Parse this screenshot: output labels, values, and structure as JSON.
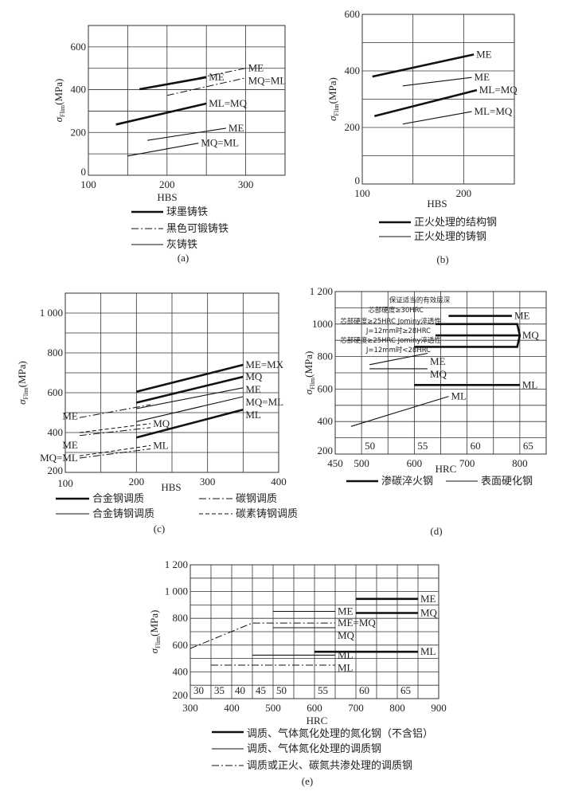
{
  "chart_data": [
    {
      "id": "a",
      "type": "line",
      "caption": "(a)",
      "xlabel": "HBS",
      "ylabel": {
        "symbol": "σ",
        "sub": "Flim",
        "unit": "(MPa)"
      },
      "xlim": [
        100,
        350
      ],
      "ylim": [
        0,
        700
      ],
      "grid": true,
      "grid_step": [
        50,
        100
      ],
      "xticks": [
        {
          "v": 100,
          "t": "100"
        },
        {
          "v": 200,
          "t": "200"
        },
        {
          "v": 300,
          "t": "300"
        }
      ],
      "yticks": [
        {
          "v": 0,
          "t": "0"
        },
        {
          "v": 200,
          "t": "200"
        },
        {
          "v": 400,
          "t": "400"
        },
        {
          "v": 600,
          "t": "600"
        }
      ],
      "series": [
        {
          "name": "球墨铸铁",
          "style": "thick",
          "lines": [
            {
              "label": "ME",
              "points": [
                [
                  165,
                  402
                ],
                [
                  250,
                  458
                ]
              ]
            },
            {
              "label": "ML=MQ",
              "points": [
                [
                  135,
                  237
                ],
                [
                  250,
                  335
                ]
              ]
            }
          ]
        },
        {
          "name": "黑色可锻铸铁",
          "style": "dashdot",
          "lines": [
            {
              "label": "ME",
              "points": [
                [
                  240,
                  455
                ],
                [
                  300,
                  500
                ]
              ]
            },
            {
              "label": "MQ=ML",
              "points": [
                [
                  200,
                  373
                ],
                [
                  300,
                  455
                ]
              ]
            }
          ]
        },
        {
          "name": "灰铸铁",
          "style": "thin",
          "lines": [
            {
              "label": "ME",
              "points": [
                [
                  175,
                  163
                ],
                [
                  275,
                  220
                ]
              ]
            },
            {
              "label": "MQ=ML",
              "points": [
                [
                  150,
                  90
                ],
                [
                  240,
                  150
                ]
              ]
            }
          ]
        }
      ]
    },
    {
      "id": "b",
      "type": "line",
      "caption": "(b)",
      "xlabel": "HBS",
      "ylabel": {
        "symbol": "σ",
        "sub": "Flim",
        "unit": "(MPa)"
      },
      "xlim": [
        100,
        250
      ],
      "ylim": [
        0,
        600
      ],
      "grid": true,
      "grid_step": [
        50,
        100
      ],
      "xticks": [
        {
          "v": 100,
          "t": "100"
        },
        {
          "v": 200,
          "t": "200"
        }
      ],
      "yticks": [
        {
          "v": 0,
          "t": "0"
        },
        {
          "v": 200,
          "t": "200"
        },
        {
          "v": 400,
          "t": "400"
        },
        {
          "v": 600,
          "t": "600"
        }
      ],
      "series": [
        {
          "name": "正火处理的结构钢",
          "style": "thick",
          "lines": [
            {
              "label": "ME",
              "points": [
                [
                  110,
                  380
                ],
                [
                  210,
                  458
                ]
              ]
            },
            {
              "label": "ML=MQ",
              "points": [
                [
                  112,
                  240
                ],
                [
                  213,
                  332
                ]
              ]
            }
          ]
        },
        {
          "name": "正火处理的铸钢",
          "style": "thin",
          "lines": [
            {
              "label": "ME",
              "points": [
                [
                  140,
                  347
                ],
                [
                  208,
                  377
                ]
              ]
            },
            {
              "label": "ML=MQ",
              "points": [
                [
                  140,
                  212
                ],
                [
                  208,
                  256
                ]
              ]
            }
          ]
        }
      ]
    },
    {
      "id": "c",
      "type": "line",
      "caption": "(c)",
      "xlabel": "HBS",
      "ylabel": {
        "symbol": "σ",
        "sub": "Flim",
        "unit": "(MPa)"
      },
      "xlim": [
        100,
        400
      ],
      "ylim": [
        200,
        1100
      ],
      "grid": true,
      "grid_step": [
        50,
        100
      ],
      "xticks": [
        {
          "v": 100,
          "t": "100"
        },
        {
          "v": 200,
          "t": "200"
        },
        {
          "v": 300,
          "t": "300"
        },
        {
          "v": 400,
          "t": "400"
        }
      ],
      "yticks": [
        {
          "v": 200,
          "t": "200"
        },
        {
          "v": 400,
          "t": "400"
        },
        {
          "v": 600,
          "t": "600"
        },
        {
          "v": 800,
          "t": "800"
        },
        {
          "v": 1000,
          "t": "1 000"
        }
      ],
      "series": [
        {
          "name": "合金钢调质",
          "style": "thick",
          "lines": [
            {
              "label": "ME=MX",
              "points": [
                [
                  200,
                  605
                ],
                [
                  350,
                  740
                ]
              ]
            },
            {
              "label": "MQ",
              "points": [
                [
                  200,
                  550
                ],
                [
                  350,
                  680
                ]
              ]
            },
            {
              "label": "ML",
              "points": [
                [
                  200,
                  375
                ],
                [
                  350,
                  515
                ]
              ]
            }
          ]
        },
        {
          "name": "碳钢调质",
          "style": "dashdot",
          "lines": [
            {
              "label": "ME",
              "label_side": "start",
              "points": [
                [
                  120,
                  475
                ],
                [
                  220,
                  540
                ]
              ]
            },
            {
              "label": "ME",
              "label_side": "start",
              "points": [
                [
                  120,
                  385
                ],
                [
                  220,
                  425
                ]
              ]
            },
            {
              "label": "MQ=ML",
              "label_side": "start",
              "points": [
                [
                  120,
                  272
                ],
                [
                  220,
                  318
                ]
              ]
            }
          ]
        },
        {
          "name": "合金铸钢调质",
          "style": "thin",
          "lines": [
            {
              "label": "ME",
              "points": [
                [
                  200,
                  520
                ],
                [
                  350,
                  625
                ]
              ]
            },
            {
              "label": "MQ=ML",
              "points": [
                [
                  200,
                  455
                ],
                [
                  350,
                  580
                ]
              ]
            }
          ]
        },
        {
          "name": "碳素铸钢调质",
          "style": "dashed",
          "lines": [
            {
              "label": "MQ",
              "points": [
                [
                  120,
                  400
                ],
                [
                  220,
                  445
                ]
              ]
            },
            {
              "label": "ML",
              "points": [
                [
                  120,
                  283
                ],
                [
                  220,
                  335
                ]
              ]
            }
          ]
        }
      ]
    },
    {
      "id": "d",
      "type": "line",
      "caption": "(d)",
      "xlabel": "HRC",
      "ylabel": {
        "symbol": "σ",
        "sub": "Flim",
        "unit": "(MPa)"
      },
      "xlim": [
        450,
        850
      ],
      "ylim": [
        200,
        1200
      ],
      "grid": true,
      "grid_step": [
        50,
        100
      ],
      "xticks": [
        {
          "v": 450,
          "t": "450"
        },
        {
          "v": 500,
          "t": "500"
        },
        {
          "v": 600,
          "t": "600"
        },
        {
          "v": 700,
          "t": "700"
        },
        {
          "v": 800,
          "t": "800"
        }
      ],
      "yticks": [
        {
          "v": 200,
          "t": "200"
        },
        {
          "v": 400,
          "t": "400"
        },
        {
          "v": 600,
          "t": "600"
        },
        {
          "v": 800,
          "t": "800"
        },
        {
          "v": 1000,
          "t": "1000"
        },
        {
          "v": 1200,
          "t": "1 200"
        }
      ],
      "hrc_ticks": [
        {
          "at": 500,
          "t": "50"
        },
        {
          "at": 600,
          "t": "55"
        },
        {
          "at": 700,
          "t": "60"
        },
        {
          "at": 800,
          "t": "65"
        }
      ],
      "annotations": [
        {
          "text": "保证适当的有效层深",
          "at": [
            610,
            1135
          ]
        },
        {
          "text": "芯部硬度≥30HRC",
          "at": [
            565,
            1072
          ]
        },
        {
          "text": "芯部硬度≥25HRC Jominy淬透性",
          "at": [
            555,
            1005
          ]
        },
        {
          "text": "J=12mm时≥28HRC",
          "at": [
            570,
            965
          ]
        },
        {
          "text": "芯部硬度≥25HRC Jominy淬透性",
          "at": [
            555,
            900
          ]
        },
        {
          "text": "J=12mm时<28HRC",
          "at": [
            570,
            860
          ]
        }
      ],
      "series": [
        {
          "name": "渗碳淬火钢",
          "style": "thick",
          "lines": [
            {
              "label": "ME",
              "points": [
                [
                  665,
                  1050
                ],
                [
                  785,
                  1050
                ]
              ]
            },
            {
              "label": "MQ",
              "points": [
                [
                  640,
                  930
                ],
                [
                  800,
                  930
                ]
              ]
            },
            {
              "label": "",
              "points": [
                [
                  640,
                  1000
                ],
                [
                  795,
                  1000
                ],
                [
                  800,
                  930
                ],
                [
                  795,
                  860
                ],
                [
                  600,
                  860
                ]
              ]
            },
            {
              "label": "ML",
              "points": [
                [
                  600,
                  625
                ],
                [
                  800,
                  625
                ]
              ]
            }
          ]
        },
        {
          "name": "表面硬化钢",
          "style": "thin",
          "lines": [
            {
              "label": "ME",
              "points": [
                [
                  515,
                  750
                ],
                [
                  625,
                  820
                ]
              ]
            },
            {
              "label": "MQ",
              "points": [
                [
                  515,
                  725
                ],
                [
                  625,
                  725
                ]
              ]
            },
            {
              "label": "ML",
              "points": [
                [
                  480,
                  370
                ],
                [
                  665,
                  555
                ]
              ]
            }
          ]
        }
      ]
    },
    {
      "id": "e",
      "type": "line",
      "caption": "(e)",
      "xlabel": "HRC",
      "ylabel": {
        "symbol": "σ",
        "sub": "Flim",
        "unit": "(MPa)"
      },
      "xlim": [
        300,
        900
      ],
      "ylim": [
        200,
        1200
      ],
      "grid": true,
      "grid_step": [
        50,
        100
      ],
      "xticks": [
        {
          "v": 300,
          "t": "300"
        },
        {
          "v": 400,
          "t": "400"
        },
        {
          "v": 500,
          "t": "500"
        },
        {
          "v": 600,
          "t": "600"
        },
        {
          "v": 700,
          "t": "700"
        },
        {
          "v": 800,
          "t": "800"
        },
        {
          "v": 900,
          "t": "900"
        }
      ],
      "yticks": [
        {
          "v": 200,
          "t": "200"
        },
        {
          "v": 400,
          "t": "400"
        },
        {
          "v": 600,
          "t": "600"
        },
        {
          "v": 800,
          "t": "800"
        },
        {
          "v": 1000,
          "t": "1 000"
        },
        {
          "v": 1200,
          "t": "1 200"
        }
      ],
      "hrc_ticks": [
        {
          "at": 300,
          "t": "30"
        },
        {
          "at": 350,
          "t": "35"
        },
        {
          "at": 400,
          "t": "40"
        },
        {
          "at": 450,
          "t": "45"
        },
        {
          "at": 500,
          "t": "50"
        },
        {
          "at": 600,
          "t": "55"
        },
        {
          "at": 700,
          "t": "60"
        },
        {
          "at": 800,
          "t": "65"
        }
      ],
      "series": [
        {
          "name": "调质、气体氮化处理的氮化钢（不含铝）",
          "style": "thick",
          "lines": [
            {
              "label": "ME",
              "points": [
                [
                  700,
                  945
                ],
                [
                  850,
                  945
                ]
              ]
            },
            {
              "label": "MQ",
              "points": [
                [
                  700,
                  840
                ],
                [
                  850,
                  840
                ]
              ]
            },
            {
              "label": "ML",
              "points": [
                [
                  600,
                  550
                ],
                [
                  850,
                  550
                ]
              ]
            }
          ]
        },
        {
          "name": "调质、气体氮化处理的调质钢",
          "style": "thin",
          "lines": [
            {
              "label": "ME",
              "points": [
                [
                  500,
                  852
                ],
                [
                  650,
                  852
                ]
              ]
            },
            {
              "label": "MQ",
              "points": [
                [
                  500,
                  730
                ],
                [
                  650,
                  730
                ]
              ]
            },
            {
              "label": "ML",
              "points": [
                [
                  450,
                  525
                ],
                [
                  650,
                  525
                ]
              ]
            }
          ]
        },
        {
          "name": "调质或正火、碳氮共渗处理的调质钢",
          "style": "dashdot",
          "lines": [
            {
              "label": "ME=MQ",
              "points": [
                [
                  300,
                  575
                ],
                [
                  450,
                  765
                ],
                [
                  650,
                  765
                ]
              ]
            },
            {
              "label": "ML",
              "points": [
                [
                  350,
                  450
                ],
                [
                  650,
                  450
                ]
              ]
            }
          ]
        }
      ]
    }
  ]
}
